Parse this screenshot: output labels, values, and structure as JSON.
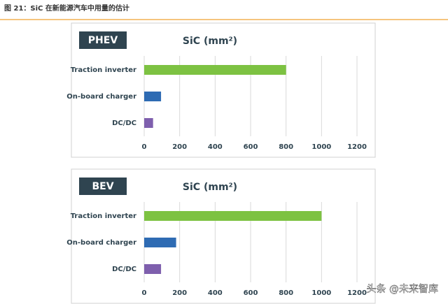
{
  "header": {
    "title": "图 21：SiC 在新能源汽车中用量的估计"
  },
  "chart_data": [
    {
      "type": "bar",
      "orientation": "horizontal",
      "panel_label": "PHEV",
      "title": "SiC (mm²)",
      "categories": [
        "Traction inverter",
        "On-board charger",
        "DC/DC"
      ],
      "values": [
        800,
        95,
        50
      ],
      "colors": [
        "#7dc242",
        "#2e6bb3",
        "#7e5fad"
      ],
      "xlim": [
        0,
        1200
      ],
      "xticks": [
        0,
        200,
        400,
        600,
        800,
        1000,
        1200
      ],
      "grid": true
    },
    {
      "type": "bar",
      "orientation": "horizontal",
      "panel_label": "BEV",
      "title": "SiC (mm²)",
      "categories": [
        "Traction inverter",
        "On-board charger",
        "DC/DC"
      ],
      "values": [
        1000,
        180,
        95
      ],
      "colors": [
        "#7dc242",
        "#2e6bb3",
        "#7e5fad"
      ],
      "xlim": [
        0,
        1200
      ],
      "xticks": [
        0,
        200,
        400,
        600,
        800,
        1000,
        1200
      ],
      "grid": true
    }
  ],
  "watermark": "头条 @未来智库"
}
